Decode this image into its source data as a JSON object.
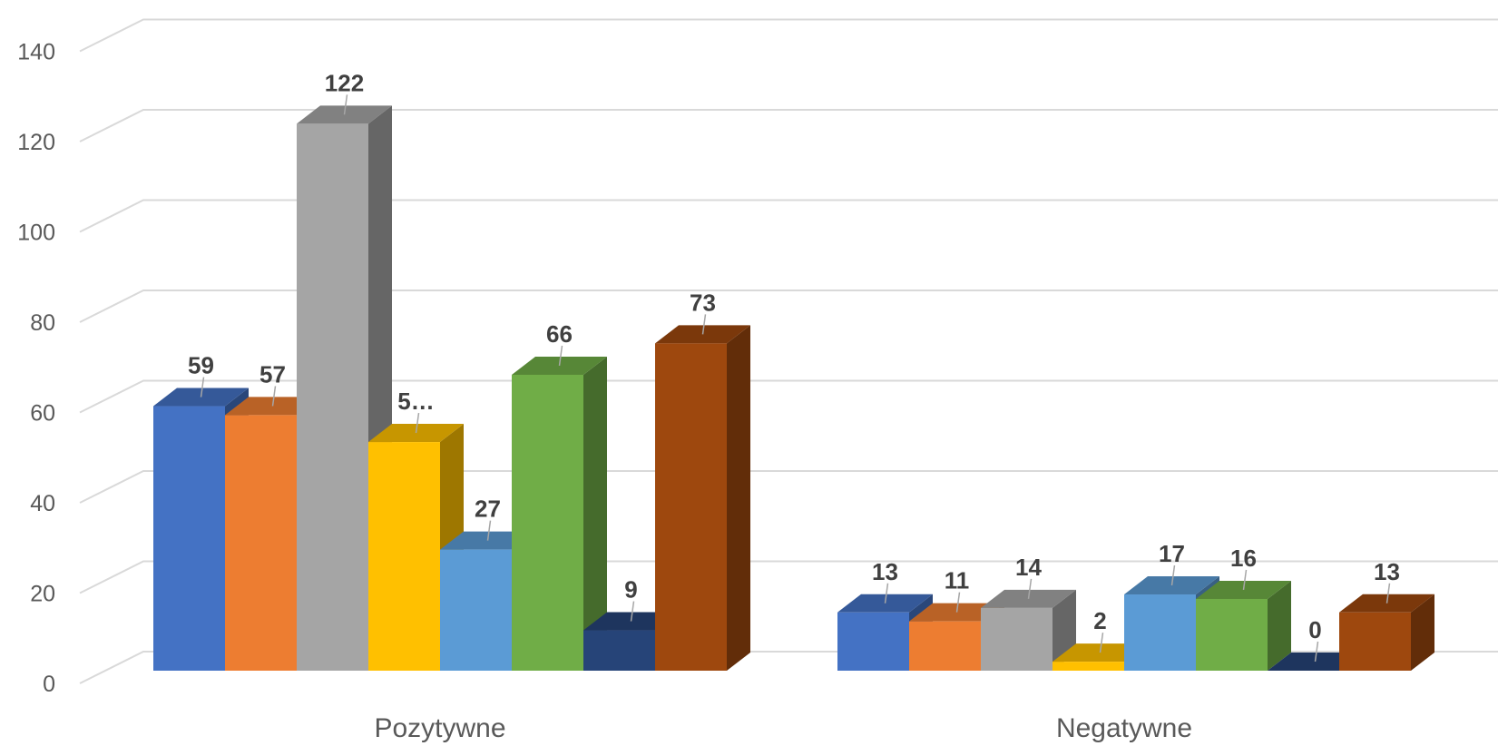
{
  "chart_data": {
    "type": "bar",
    "style": "3d-clustered-column",
    "categories": [
      "Pozytywne",
      "Negatywne"
    ],
    "series": [
      {
        "values": [
          59,
          13
        ],
        "color": "#4472C4",
        "labels": [
          "59",
          "13"
        ]
      },
      {
        "values": [
          57,
          11
        ],
        "color": "#ED7D31",
        "labels": [
          "57",
          "11"
        ]
      },
      {
        "values": [
          122,
          14
        ],
        "color": "#A5A5A5",
        "labels": [
          "122",
          "14"
        ]
      },
      {
        "values": [
          51,
          2
        ],
        "color": "#FFC000",
        "labels": [
          "5…",
          "2"
        ]
      },
      {
        "values": [
          27,
          17
        ],
        "color": "#5B9BD5",
        "labels": [
          "27",
          "17"
        ]
      },
      {
        "values": [
          66,
          16
        ],
        "color": "#70AD47",
        "labels": [
          "66",
          "16"
        ]
      },
      {
        "values": [
          9,
          0
        ],
        "color": "#264478",
        "labels": [
          "9",
          "0"
        ]
      },
      {
        "values": [
          73,
          13
        ],
        "color": "#9E480E",
        "labels": [
          "73",
          "13"
        ]
      }
    ],
    "ylim": [
      0,
      140
    ],
    "yticks": [
      "0",
      "20",
      "40",
      "60",
      "80",
      "100",
      "120",
      "140"
    ],
    "grid": true,
    "legend": "none",
    "title": "",
    "xlabel": "",
    "ylabel": ""
  }
}
